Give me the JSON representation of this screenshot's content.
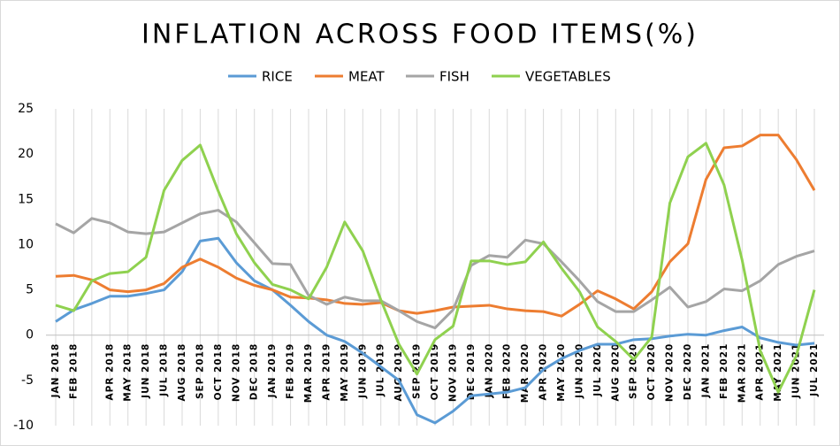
{
  "chart_data": {
    "type": "line",
    "title": "INFLATION ACROSS FOOD ITEMS(%)",
    "categories": [
      "JAN 2018",
      "FEB 2018",
      null,
      "APR 2018",
      "MAY 2018",
      "JUN 2018",
      "JUL 2018",
      "AUG 2018",
      "SEP 2018",
      "OCT 2018",
      "NOV 2018",
      "DEC 2018",
      "JAN 2019",
      "FEB 2019",
      "MAR 2019",
      "APR 2019",
      "MAY 2019",
      "JUN 2019",
      "JUL 2019",
      "AUG 2019",
      "SEP 2019",
      "OCT 2019",
      "NOV 2019",
      "DEC 2019",
      "JAN 2020",
      "FEB 2020",
      "MAR 2020",
      "APR 2020",
      "MAY 2020",
      "JUN 2020",
      "JUL 2020",
      "AUG 2020",
      "SEP 2020",
      "OCT 2020",
      "NOV 2020",
      "DEC 2020",
      "JAN 2021",
      "FEB 2021",
      "MAR 2021",
      "APR 2021",
      "MAY 2021",
      "JUN 2021",
      "JUL 2021"
    ],
    "series": [
      {
        "name": "RICE",
        "color": "#5b9bd5",
        "values": [
          1.5,
          2.8,
          3.5,
          4.3,
          4.3,
          4.6,
          5.0,
          7.0,
          10.4,
          10.7,
          8.0,
          6.0,
          5.0,
          3.3,
          1.5,
          0,
          -0.7,
          -2.0,
          -3.5,
          -5.0,
          -8.8,
          -9.7,
          -8.4,
          -6.7,
          -6.5,
          -6.3,
          -5.8,
          -3.8,
          -2.6,
          -1.7,
          -1.0,
          -1.0,
          -0.5,
          -0.4,
          -0.1,
          0.1,
          0.0,
          0.5,
          0.9,
          -0.3,
          -0.8,
          -1.1,
          -0.9
        ]
      },
      {
        "name": "MEAT",
        "color": "#ed7d31",
        "values": [
          6.5,
          6.6,
          6.1,
          5.0,
          4.8,
          5.0,
          5.7,
          7.5,
          8.4,
          7.5,
          6.3,
          5.5,
          5.0,
          4.2,
          4.1,
          3.9,
          3.5,
          3.4,
          3.6,
          2.7,
          2.4,
          2.7,
          3.1,
          3.2,
          3.3,
          2.9,
          2.7,
          2.6,
          2.1,
          3.4,
          4.9,
          4.0,
          2.9,
          4.8,
          8.1,
          10.1,
          17.2,
          20.7,
          20.9,
          22.1,
          22.1,
          19.4,
          16.0
        ]
      },
      {
        "name": "FISH",
        "color": "#a5a5a5",
        "values": [
          12.3,
          11.3,
          12.9,
          12.4,
          11.4,
          11.2,
          11.4,
          12.4,
          13.4,
          13.8,
          12.5,
          10.2,
          7.9,
          7.8,
          4.4,
          3.4,
          4.2,
          3.8,
          3.8,
          2.7,
          1.5,
          0.8,
          2.8,
          7.7,
          8.8,
          8.6,
          10.5,
          10.1,
          8.1,
          6.0,
          3.7,
          2.6,
          2.6,
          3.9,
          5.3,
          3.1,
          3.7,
          5.1,
          4.9,
          6.0,
          7.8,
          8.7,
          9.3
        ]
      },
      {
        "name": "VEGETABLES",
        "color": "#8fd14f",
        "values": [
          3.3,
          2.7,
          6.0,
          6.8,
          7.0,
          8.6,
          16.0,
          19.3,
          21.0,
          15.9,
          11.2,
          8.0,
          5.6,
          5.0,
          4.0,
          7.5,
          12.5,
          9.3,
          3.9,
          -1.0,
          -4.3,
          -0.5,
          1.0,
          8.2,
          8.2,
          7.8,
          8.1,
          10.3,
          7.4,
          4.8,
          0.9,
          -0.7,
          -2.7,
          -0.2,
          14.6,
          19.7,
          21.2,
          16.6,
          8.3,
          -1.7,
          -6.3,
          -2.3,
          5.0
        ]
      }
    ],
    "ylim": [
      -10,
      25
    ],
    "yticks": [
      -10,
      -5,
      0,
      5,
      10,
      15,
      20,
      25
    ],
    "grid": true
  }
}
